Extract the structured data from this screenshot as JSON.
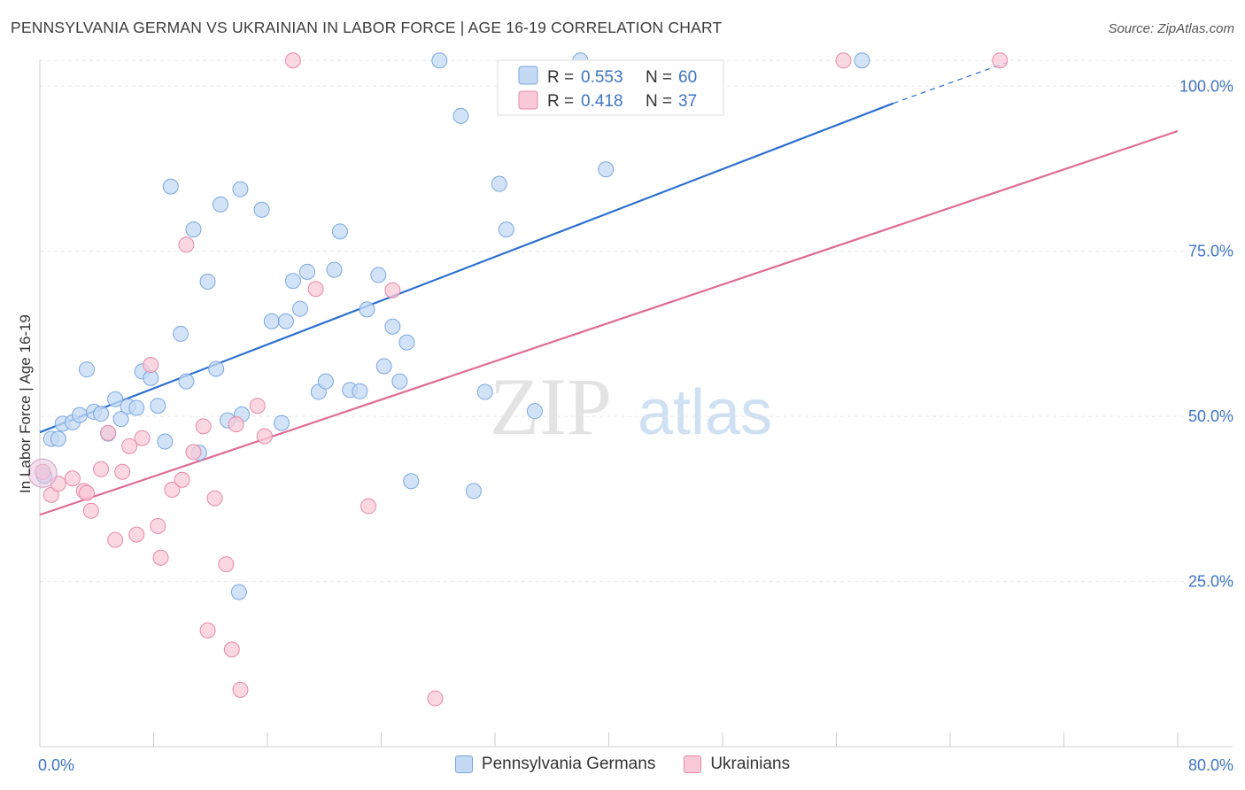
{
  "title": "PENNSYLVANIA GERMAN VS UKRAINIAN IN LABOR FORCE | AGE 16-19 CORRELATION CHART",
  "source": "Source: ZipAtlas.com",
  "watermark": {
    "zip": "ZIP",
    "atlas": "atlas"
  },
  "chart_data": {
    "type": "scatter",
    "ylabel": "In Labor Force | Age 16-19",
    "xlabel": "",
    "xlim": [
      0,
      80
    ],
    "ylim": [
      0,
      105
    ],
    "x_tick_labels": [
      "0.0%",
      "80.0%"
    ],
    "y_ticks": [
      25,
      50,
      75,
      100
    ],
    "y_tick_labels": [
      "25.0%",
      "50.0%",
      "75.0%",
      "100.0%"
    ],
    "grid": true,
    "legend_stats": [
      {
        "r_label": "R =",
        "r_value": "0.553",
        "n_label": "N =",
        "n_value": "60"
      },
      {
        "r_label": "R =",
        "r_value": "0.418",
        "n_label": "N =",
        "n_value": "37"
      }
    ],
    "series": [
      {
        "name": "Pennsylvania Germans",
        "color": "#7ba7e0",
        "fill": "#c4d9f4",
        "line_color": "#2b6fd0",
        "trend": {
          "x0": 0,
          "y0": 47.6,
          "x1": 60,
          "y1": 97.4,
          "dash_to_x": 68,
          "dash_to_y": 103.6
        },
        "points": [
          [
            0.3,
            41
          ],
          [
            0.8,
            46.6
          ],
          [
            1.3,
            46.6
          ],
          [
            1.6,
            48.9
          ],
          [
            2.3,
            49.1
          ],
          [
            2.8,
            50.2
          ],
          [
            3.3,
            57.1
          ],
          [
            3.8,
            50.7
          ],
          [
            4.3,
            50.4
          ],
          [
            4.8,
            47.4
          ],
          [
            5.3,
            52.6
          ],
          [
            5.7,
            49.6
          ],
          [
            6.2,
            51.5
          ],
          [
            6.8,
            51.3
          ],
          [
            7.2,
            56.8
          ],
          [
            7.8,
            55.8
          ],
          [
            8.3,
            51.6
          ],
          [
            8.8,
            46.2
          ],
          [
            9.2,
            84.8
          ],
          [
            9.9,
            62.5
          ],
          [
            10.3,
            55.3
          ],
          [
            10.8,
            78.3
          ],
          [
            11.2,
            44.5
          ],
          [
            11.8,
            70.4
          ],
          [
            12.4,
            57.2
          ],
          [
            12.7,
            82.1
          ],
          [
            13.2,
            49.4
          ],
          [
            14.1,
            84.4
          ],
          [
            14.2,
            50.3
          ],
          [
            14.0,
            23.4
          ],
          [
            15.6,
            81.3
          ],
          [
            16.3,
            64.4
          ],
          [
            17.0,
            49.0
          ],
          [
            17.3,
            64.4
          ],
          [
            17.8,
            70.5
          ],
          [
            18.3,
            66.3
          ],
          [
            18.8,
            71.9
          ],
          [
            19.6,
            53.7
          ],
          [
            20.1,
            55.3
          ],
          [
            20.7,
            72.2
          ],
          [
            21.1,
            78.0
          ],
          [
            21.8,
            54.0
          ],
          [
            22.5,
            53.8
          ],
          [
            23.0,
            66.2
          ],
          [
            23.8,
            71.4
          ],
          [
            24.2,
            57.6
          ],
          [
            24.8,
            63.6
          ],
          [
            25.3,
            55.3
          ],
          [
            25.8,
            61.2
          ],
          [
            26.1,
            40.2
          ],
          [
            28.1,
            103.9
          ],
          [
            29.6,
            95.5
          ],
          [
            30.5,
            38.7
          ],
          [
            31.3,
            53.7
          ],
          [
            32.3,
            85.2
          ],
          [
            32.8,
            78.3
          ],
          [
            34.8,
            50.8
          ],
          [
            38.0,
            103.9
          ],
          [
            39.8,
            87.4
          ],
          [
            57.8,
            103.9
          ]
        ]
      },
      {
        "name": "Ukrainians",
        "color": "#e889a8",
        "fill": "#f9c9d8",
        "line_color": "#e06b95",
        "trend": {
          "x0": 0,
          "y0": 35.1,
          "x1": 80,
          "y1": 93.2
        },
        "points": [
          [
            0.2,
            41.6
          ],
          [
            0.8,
            38.1
          ],
          [
            1.3,
            39.8
          ],
          [
            2.3,
            40.6
          ],
          [
            3.1,
            38.7
          ],
          [
            3.3,
            38.4
          ],
          [
            3.6,
            35.7
          ],
          [
            4.3,
            42.0
          ],
          [
            4.8,
            47.5
          ],
          [
            5.3,
            31.3
          ],
          [
            5.8,
            41.6
          ],
          [
            6.3,
            45.5
          ],
          [
            6.8,
            32.1
          ],
          [
            7.2,
            46.7
          ],
          [
            7.8,
            57.8
          ],
          [
            8.3,
            33.4
          ],
          [
            8.5,
            28.6
          ],
          [
            9.3,
            38.9
          ],
          [
            10.0,
            40.4
          ],
          [
            10.3,
            76.0
          ],
          [
            10.8,
            44.6
          ],
          [
            11.5,
            48.5
          ],
          [
            11.8,
            17.6
          ],
          [
            12.3,
            37.6
          ],
          [
            13.1,
            27.6
          ],
          [
            13.5,
            14.7
          ],
          [
            13.8,
            48.8
          ],
          [
            14.1,
            8.6
          ],
          [
            15.3,
            51.6
          ],
          [
            15.8,
            47.0
          ],
          [
            17.8,
            103.9
          ],
          [
            19.4,
            69.3
          ],
          [
            23.1,
            36.4
          ],
          [
            24.8,
            69.1
          ],
          [
            27.8,
            7.3
          ],
          [
            56.5,
            103.9
          ],
          [
            67.5,
            103.9
          ]
        ]
      }
    ]
  }
}
